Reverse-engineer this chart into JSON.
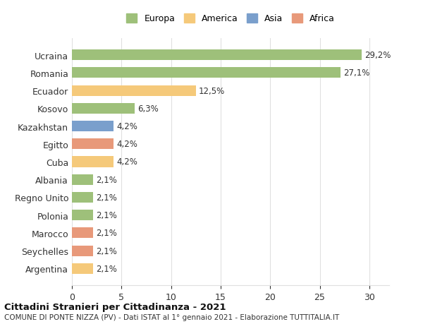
{
  "countries": [
    "Argentina",
    "Seychelles",
    "Marocco",
    "Polonia",
    "Regno Unito",
    "Albania",
    "Cuba",
    "Egitto",
    "Kazakhstan",
    "Kosovo",
    "Ecuador",
    "Romania",
    "Ucraina"
  ],
  "values": [
    2.1,
    2.1,
    2.1,
    2.1,
    2.1,
    2.1,
    4.2,
    4.2,
    4.2,
    6.3,
    12.5,
    27.1,
    29.2
  ],
  "labels": [
    "2,1%",
    "2,1%",
    "2,1%",
    "2,1%",
    "2,1%",
    "2,1%",
    "4,2%",
    "4,2%",
    "4,2%",
    "6,3%",
    "12,5%",
    "27,1%",
    "29,2%"
  ],
  "colors": [
    "#f5c97a",
    "#e8997a",
    "#e8997a",
    "#9ec07a",
    "#9ec07a",
    "#9ec07a",
    "#f5c97a",
    "#e8997a",
    "#7a9fcc",
    "#9ec07a",
    "#f5c97a",
    "#9ec07a",
    "#9ec07a"
  ],
  "legend": {
    "Europa": "#9ec07a",
    "America": "#f5c97a",
    "Asia": "#7a9fcc",
    "Africa": "#e8997a"
  },
  "title1": "Cittadini Stranieri per Cittadinanza - 2021",
  "title2": "COMUNE DI PONTE NIZZA (PV) - Dati ISTAT al 1° gennaio 2021 - Elaborazione TUTTITALIA.IT",
  "xlim": [
    0,
    32
  ],
  "xticks": [
    0,
    5,
    10,
    15,
    20,
    25,
    30
  ],
  "background_color": "#ffffff",
  "grid_color": "#e0e0e0"
}
